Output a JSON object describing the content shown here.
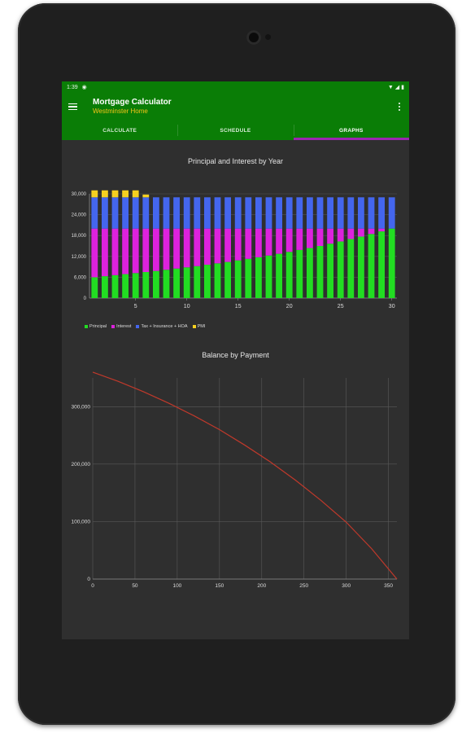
{
  "status_bar": {
    "time": "1:39"
  },
  "app_bar": {
    "title": "Mortgage Calculator",
    "subtitle": "Westminster Home"
  },
  "tabs": [
    {
      "label": "CALCULATE",
      "active": false
    },
    {
      "label": "SCHEDULE",
      "active": false
    },
    {
      "label": "GRAPHS",
      "active": true
    }
  ],
  "colors": {
    "app_bar": "#0a7d06",
    "tab_indicator": "#9c27b0",
    "subtitle": "#f5c518",
    "principal": "#22dd22",
    "interest": "#dd22dd",
    "tax_ins_hoa": "#4466ee",
    "pmi": "#f5d020",
    "balance_line": "#c0392b"
  },
  "chart_data": [
    {
      "type": "bar",
      "stacked": true,
      "title": "Principal and Interest by Year",
      "x": [
        1,
        2,
        3,
        4,
        5,
        6,
        7,
        8,
        9,
        10,
        11,
        12,
        13,
        14,
        15,
        16,
        17,
        18,
        19,
        20,
        21,
        22,
        23,
        24,
        25,
        26,
        27,
        28,
        29,
        30
      ],
      "x_ticks": [
        "5",
        "10",
        "15",
        "20",
        "25",
        "30"
      ],
      "y_ticks": [
        "0",
        "6,000",
        "12,000",
        "18,000",
        "24,000",
        "30,000"
      ],
      "ylim": [
        0,
        30000
      ],
      "grid": true,
      "legend_position": "bottom-left",
      "series": [
        {
          "name": "Principal",
          "color": "#22dd22",
          "values": [
            6000,
            6300,
            6600,
            6900,
            7200,
            7500,
            7800,
            8150,
            8500,
            8850,
            9200,
            9600,
            10000,
            10400,
            10850,
            11300,
            11750,
            12250,
            12750,
            13300,
            13850,
            14400,
            15000,
            15650,
            16300,
            17000,
            17700,
            18450,
            19200,
            20000
          ]
        },
        {
          "name": "Interest",
          "color": "#dd22dd",
          "values": [
            14000,
            13700,
            13400,
            13100,
            12800,
            12500,
            12200,
            11850,
            11500,
            11150,
            10800,
            10400,
            10000,
            9600,
            9150,
            8700,
            8250,
            7750,
            7250,
            6700,
            6150,
            5600,
            5000,
            4350,
            3700,
            3000,
            2300,
            1550,
            800,
            0
          ]
        },
        {
          "name": "Tax + Insurance + HOA",
          "color": "#4466ee",
          "values": [
            9000,
            9000,
            9000,
            9000,
            9000,
            9000,
            9000,
            9000,
            9000,
            9000,
            9000,
            9000,
            9000,
            9000,
            9000,
            9000,
            9000,
            9000,
            9000,
            9000,
            9000,
            9000,
            9000,
            9000,
            9000,
            9000,
            9000,
            9000,
            9000,
            9000
          ]
        },
        {
          "name": "PMI",
          "color": "#f5d020",
          "values": [
            2000,
            2000,
            2000,
            2000,
            2000,
            800,
            0,
            0,
            0,
            0,
            0,
            0,
            0,
            0,
            0,
            0,
            0,
            0,
            0,
            0,
            0,
            0,
            0,
            0,
            0,
            0,
            0,
            0,
            0,
            0
          ]
        }
      ]
    },
    {
      "type": "line",
      "title": "Balance by Payment",
      "x_ticks": [
        "0",
        "50",
        "100",
        "150",
        "200",
        "250",
        "300",
        "350"
      ],
      "y_ticks": [
        "0",
        "100,000",
        "200,000",
        "300,000"
      ],
      "xlim": [
        0,
        360
      ],
      "ylim": [
        0,
        350000
      ],
      "grid": true,
      "series": [
        {
          "name": "",
          "color": "#c0392b",
          "x": [
            0,
            30,
            60,
            90,
            120,
            150,
            180,
            210,
            240,
            270,
            300,
            330,
            360
          ],
          "y": [
            360000,
            344000,
            326000,
            306000,
            284000,
            260000,
            233000,
            204000,
            172000,
            137000,
            99000,
            53000,
            0
          ]
        }
      ]
    }
  ]
}
